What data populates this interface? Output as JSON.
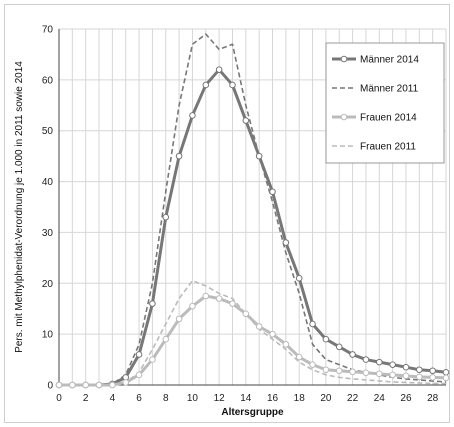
{
  "chart_data": {
    "type": "line",
    "title": "",
    "xlabel": "Altersgruppe",
    "ylabel": "Pers. mit Methylphenidat-Verordnung je 1.000 in 2011 sowie 2014",
    "xlim": [
      0,
      29
    ],
    "ylim": [
      0,
      70
    ],
    "xticks": [
      0,
      2,
      4,
      6,
      8,
      10,
      12,
      14,
      16,
      18,
      20,
      22,
      24,
      26,
      28
    ],
    "yticks": [
      0,
      10,
      20,
      30,
      40,
      50,
      60,
      70
    ],
    "grid": true,
    "legend_position": "top-right",
    "x": [
      0,
      1,
      2,
      3,
      4,
      5,
      6,
      7,
      8,
      9,
      10,
      11,
      12,
      13,
      14,
      15,
      16,
      17,
      18,
      19,
      20,
      21,
      22,
      23,
      24,
      25,
      26,
      27,
      28,
      29
    ],
    "series": [
      {
        "name": "Männer 2014",
        "color": "#777777",
        "style": "solid-thick-markers",
        "values": [
          0,
          0,
          0,
          0,
          0.2,
          1.5,
          6,
          16,
          33,
          45,
          53,
          59,
          62,
          59,
          52,
          45,
          38,
          28,
          21,
          12,
          9,
          7.5,
          6,
          5,
          4.5,
          4,
          3.5,
          3,
          2.8,
          2.5
        ]
      },
      {
        "name": "Männer 2011",
        "color": "#777777",
        "style": "dashed",
        "values": [
          0,
          0,
          0,
          0,
          0.2,
          2,
          8,
          20,
          38,
          55,
          67,
          69,
          66,
          67,
          55,
          45,
          36,
          26,
          18,
          8,
          5,
          4,
          3,
          2.5,
          2,
          1.5,
          1.2,
          1,
          0.8,
          0.6
        ]
      },
      {
        "name": "Frauen 2014",
        "color": "#bbbbbb",
        "style": "solid-thick-markers",
        "values": [
          0,
          0,
          0,
          0,
          0,
          0.5,
          2,
          5,
          9,
          13,
          15.5,
          17.5,
          17,
          16,
          14,
          11.5,
          10,
          8,
          5.5,
          4,
          3,
          2.8,
          2.6,
          2.4,
          2.2,
          2,
          1.8,
          1.6,
          1.5,
          1.4
        ]
      },
      {
        "name": "Frauen 2011",
        "color": "#bbbbbb",
        "style": "dashed",
        "values": [
          0,
          0,
          0,
          0,
          0,
          0.5,
          2.5,
          7,
          12,
          17,
          20.5,
          19.5,
          18,
          17,
          14,
          11,
          9,
          7,
          4.5,
          3,
          2,
          1.5,
          1.2,
          1,
          0.8,
          0.6,
          0.5,
          0.4,
          0.3,
          0.3
        ]
      }
    ]
  }
}
